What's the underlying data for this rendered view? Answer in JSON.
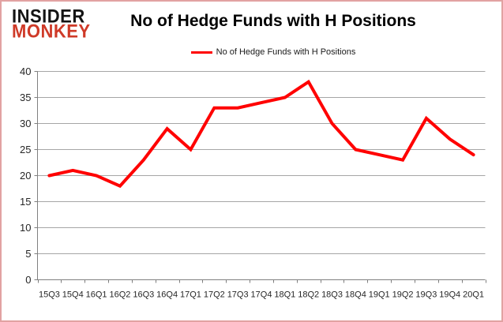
{
  "brand": {
    "line1": "INSIDER",
    "line2": "MONKEY",
    "accent_color": "#cf3a28"
  },
  "header": {
    "title": "No of Hedge Funds with H Positions"
  },
  "legend": {
    "label": "No of Hedge Funds with H Positions",
    "line_color": "#ff0000"
  },
  "chart_data": {
    "type": "line",
    "title": "No of Hedge Funds with H Positions",
    "categories": [
      "15Q3",
      "15Q4",
      "16Q1",
      "16Q2",
      "16Q3",
      "16Q4",
      "17Q1",
      "17Q2",
      "17Q3",
      "17Q4",
      "18Q1",
      "18Q2",
      "18Q3",
      "18Q4",
      "19Q1",
      "19Q2",
      "19Q3",
      "19Q4",
      "20Q1"
    ],
    "series": [
      {
        "name": "No of Hedge Funds with H Positions",
        "color": "#ff0000",
        "values": [
          20,
          21,
          20,
          18,
          23,
          29,
          25,
          33,
          33,
          34,
          35,
          38,
          30,
          25,
          24,
          23,
          31,
          27,
          24
        ]
      }
    ],
    "ylim": [
      0,
      40
    ],
    "yticks": [
      0,
      5,
      10,
      15,
      20,
      25,
      30,
      35,
      40
    ],
    "grid": true,
    "legend_position": "top-center",
    "xlabel": "",
    "ylabel": ""
  },
  "colors": {
    "grid": "#a6a6a6",
    "axis": "#808080",
    "tick_label": "#262626",
    "frame": "#e2a2a2",
    "background": "#ffffff",
    "series_line": "#ff0000"
  }
}
